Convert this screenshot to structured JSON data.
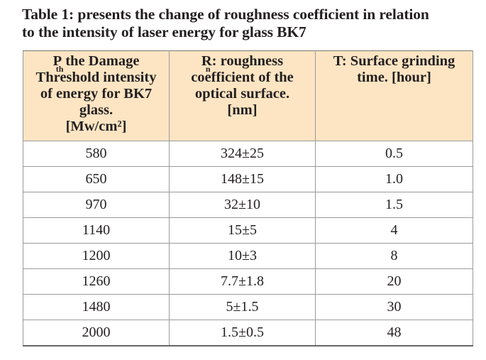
{
  "caption": {
    "line1": "Table 1: presents the change of roughness coefficient in relation",
    "line2": "to the intensity of laser energy for glass BK7"
  },
  "columns": [
    {
      "symbol": "P",
      "subscript": "th",
      "line1_rest": " the Damage",
      "line2": "Threshold intensity",
      "line3": "of energy for BK7",
      "line4": "glass.",
      "line5": "[Mw/cm²]"
    },
    {
      "symbol": "R",
      "subscript": "n",
      "line1_rest": ": roughness",
      "line2": "coefficient of the",
      "line3": "optical surface.",
      "line4": "[nm]"
    },
    {
      "line1": "T: Surface grinding",
      "line2": "time. [hour]"
    }
  ],
  "rows": [
    [
      "580",
      "324±25",
      "0.5"
    ],
    [
      "650",
      "148±15",
      "1.0"
    ],
    [
      "970",
      "32±10",
      "1.5"
    ],
    [
      "1140",
      "15±5",
      "4"
    ],
    [
      "1200",
      "10±3",
      "8"
    ],
    [
      "1260",
      "7.7±1.8",
      "20"
    ],
    [
      "1480",
      "5±1.5",
      "30"
    ],
    [
      "2000",
      "1.5±0.5",
      "48"
    ]
  ],
  "colors": {
    "header_background": "#fde5c3",
    "border": "#9a9a9a",
    "text": "#231f20"
  }
}
